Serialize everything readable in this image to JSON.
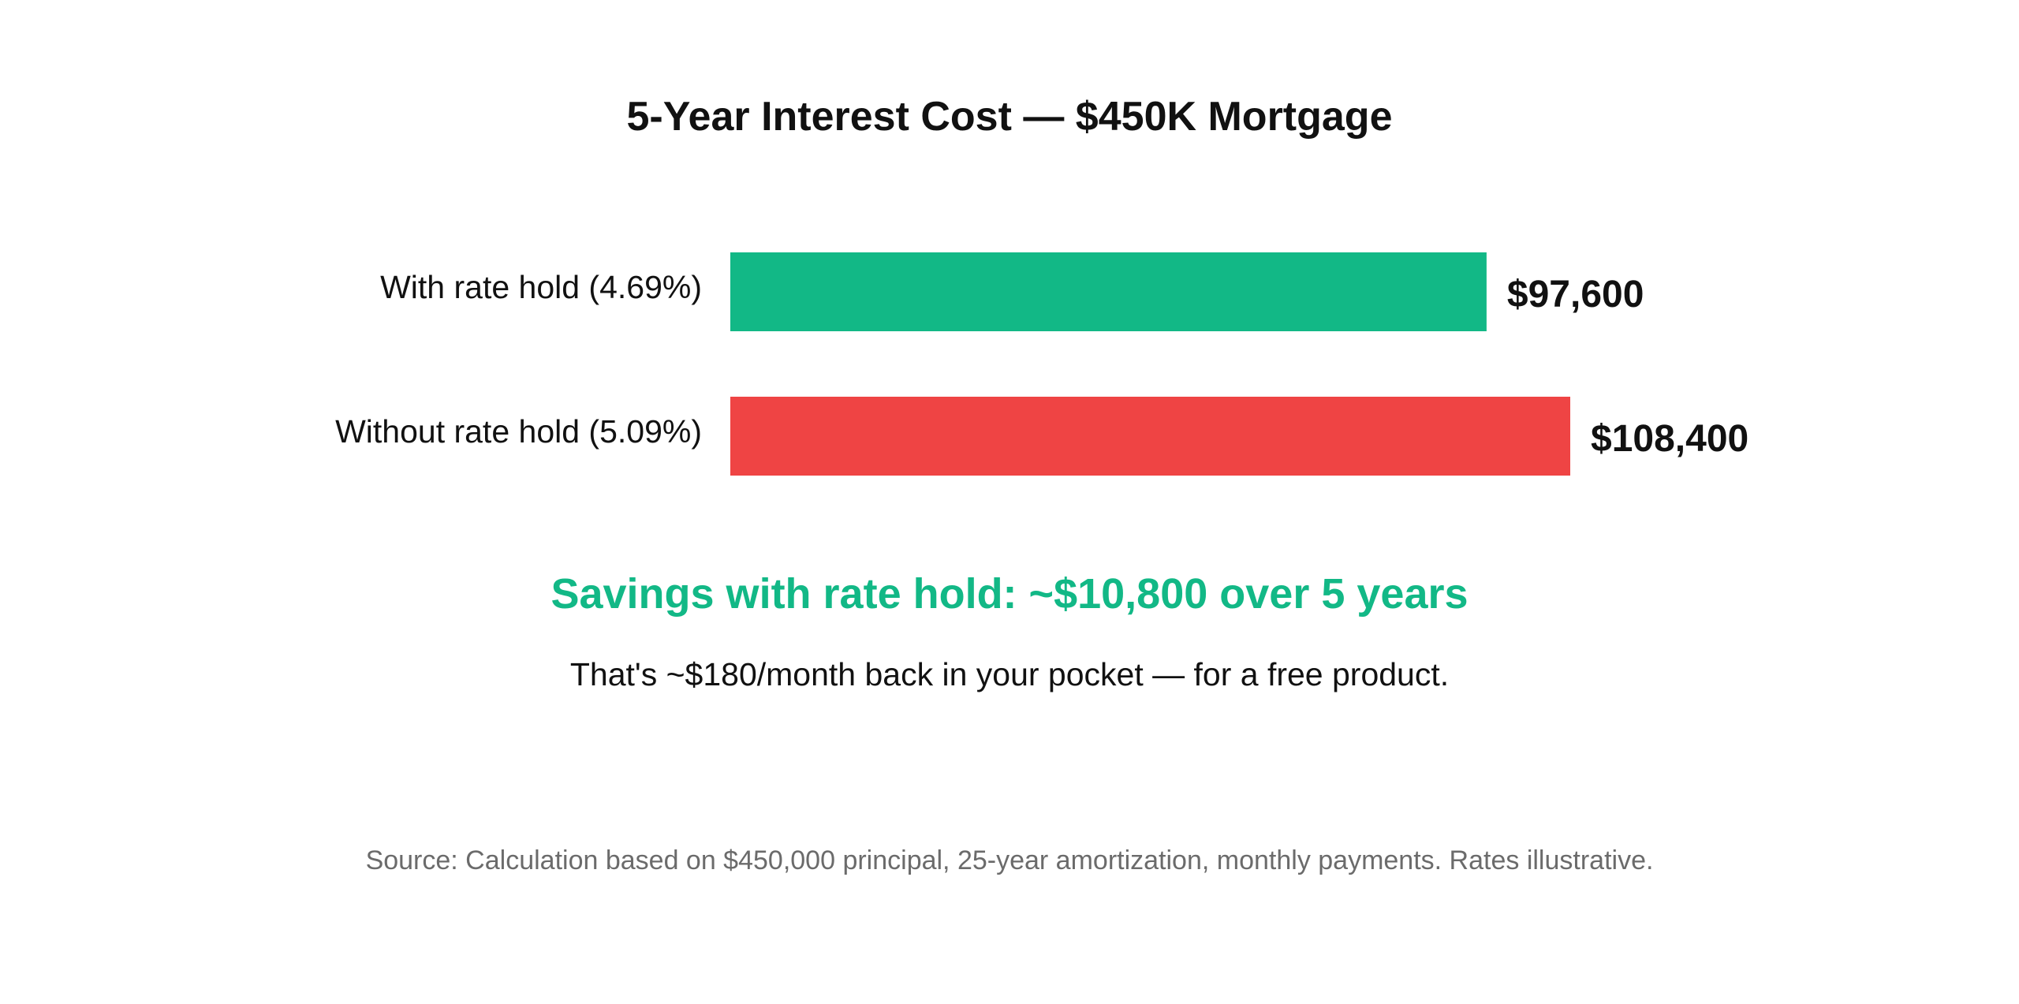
{
  "chart_data": {
    "type": "bar",
    "orientation": "horizontal",
    "title": "5-Year Interest Cost — $450K Mortgage",
    "categories": [
      "With rate hold (4.69%)",
      "Without rate hold (5.09%)"
    ],
    "values": [
      97600,
      108400
    ],
    "value_labels": [
      "$97,600",
      "$108,400"
    ],
    "colors": [
      "#12b886",
      "#ef4444"
    ],
    "xlim": [
      0,
      108400
    ],
    "grid": false
  },
  "summary": {
    "headline": "Savings with rate hold: ~$10,800 over 5 years",
    "headline_color": "#12b886",
    "subline": "That's ~$180/month back in your pocket — for a free product."
  },
  "footer": {
    "source": "Source: Calculation based on $450,000 principal, 25-year amortization, monthly payments. Rates illustrative."
  }
}
